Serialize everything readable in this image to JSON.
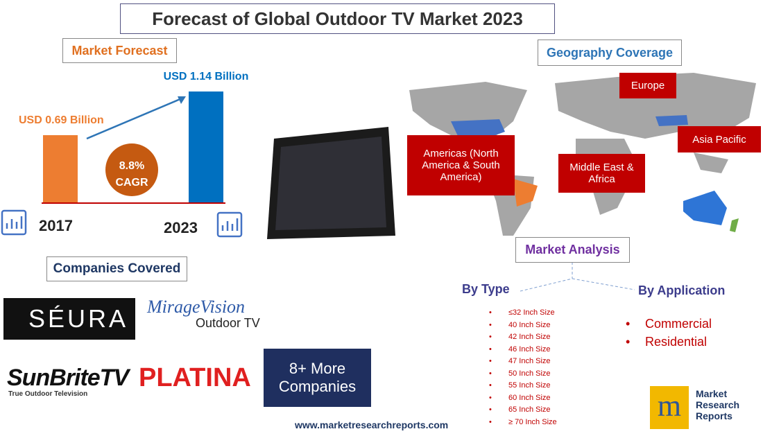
{
  "header": {
    "title": "Forecast of Global Outdoor TV Market 2023"
  },
  "forecast": {
    "label": "Market Forecast",
    "bars": [
      {
        "year": "2017",
        "value": 0.69,
        "value_label": "USD 0.69 Billion",
        "color": "#ed7d31"
      },
      {
        "year": "2023",
        "value": 1.14,
        "value_label": "USD 1.14 Billion",
        "color": "#0070c0"
      }
    ],
    "cagr": {
      "value": "8.8%",
      "label": "CAGR"
    }
  },
  "companies": {
    "label": "Companies Covered",
    "logos": [
      "SÉURA",
      "MirageVision",
      "Outdoor TV",
      "SunBriteTV",
      "True Outdoor Television",
      "PLATINA"
    ],
    "more": "8+ More Companies"
  },
  "geography": {
    "label": "Geography Coverage",
    "regions": [
      "Europe",
      "Americas (North America & South America)",
      "Middle East & Africa",
      "Asia Pacific"
    ]
  },
  "analysis": {
    "label": "Market Analysis",
    "by_type": {
      "label": "By Type",
      "items": [
        "≤32 Inch Size",
        "40 Inch Size",
        "42 Inch Size",
        "46 Inch Size",
        "47 Inch Size",
        "50 Inch Size",
        "55 Inch Size",
        "60 Inch Size",
        "65 Inch Size",
        "≥ 70 Inch Size"
      ]
    },
    "by_application": {
      "label": "By Application",
      "items": [
        "Commercial",
        "Residential"
      ]
    }
  },
  "footer": {
    "website": "www.marketresearchreports.com",
    "brand": [
      "Market",
      "Research",
      "Reports"
    ]
  }
}
